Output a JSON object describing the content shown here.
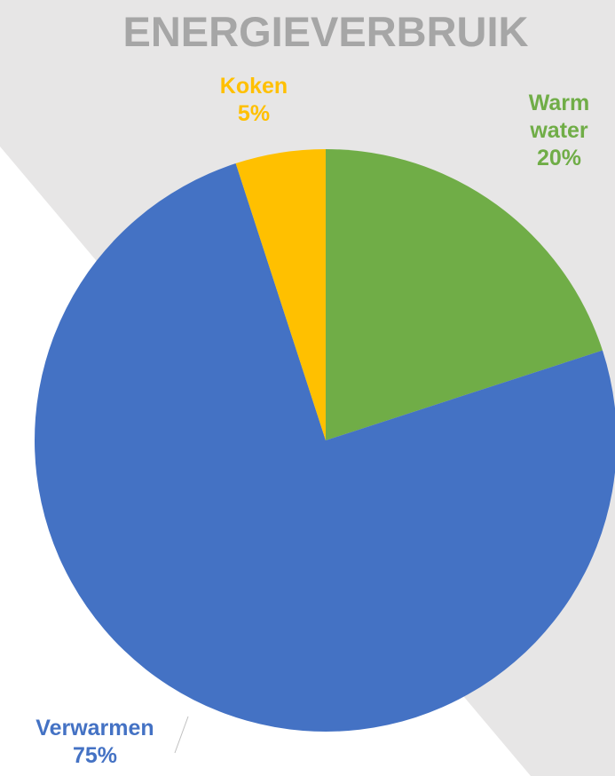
{
  "chart_data": {
    "type": "pie",
    "title": "ENERGIEVERBRUIK",
    "slices": [
      {
        "label": "Warm water",
        "label_lines": [
          "Warm",
          "water"
        ],
        "value": 20,
        "display": "20%",
        "color": "#70ad47"
      },
      {
        "label": "Verwarmen",
        "label_lines": [
          "Verwarmen"
        ],
        "value": 75,
        "display": "75%",
        "color": "#4472c4"
      },
      {
        "label": "Koken",
        "label_lines": [
          "Koken"
        ],
        "value": 5,
        "display": "5%",
        "color": "#ffc000"
      }
    ],
    "start_angle": "12 o'clock, clockwise"
  },
  "colors": {
    "background_band": "#e7e6e6",
    "background_white": "#ffffff",
    "title": "#a6a6a6",
    "leader_line": "#bfbfbf"
  }
}
